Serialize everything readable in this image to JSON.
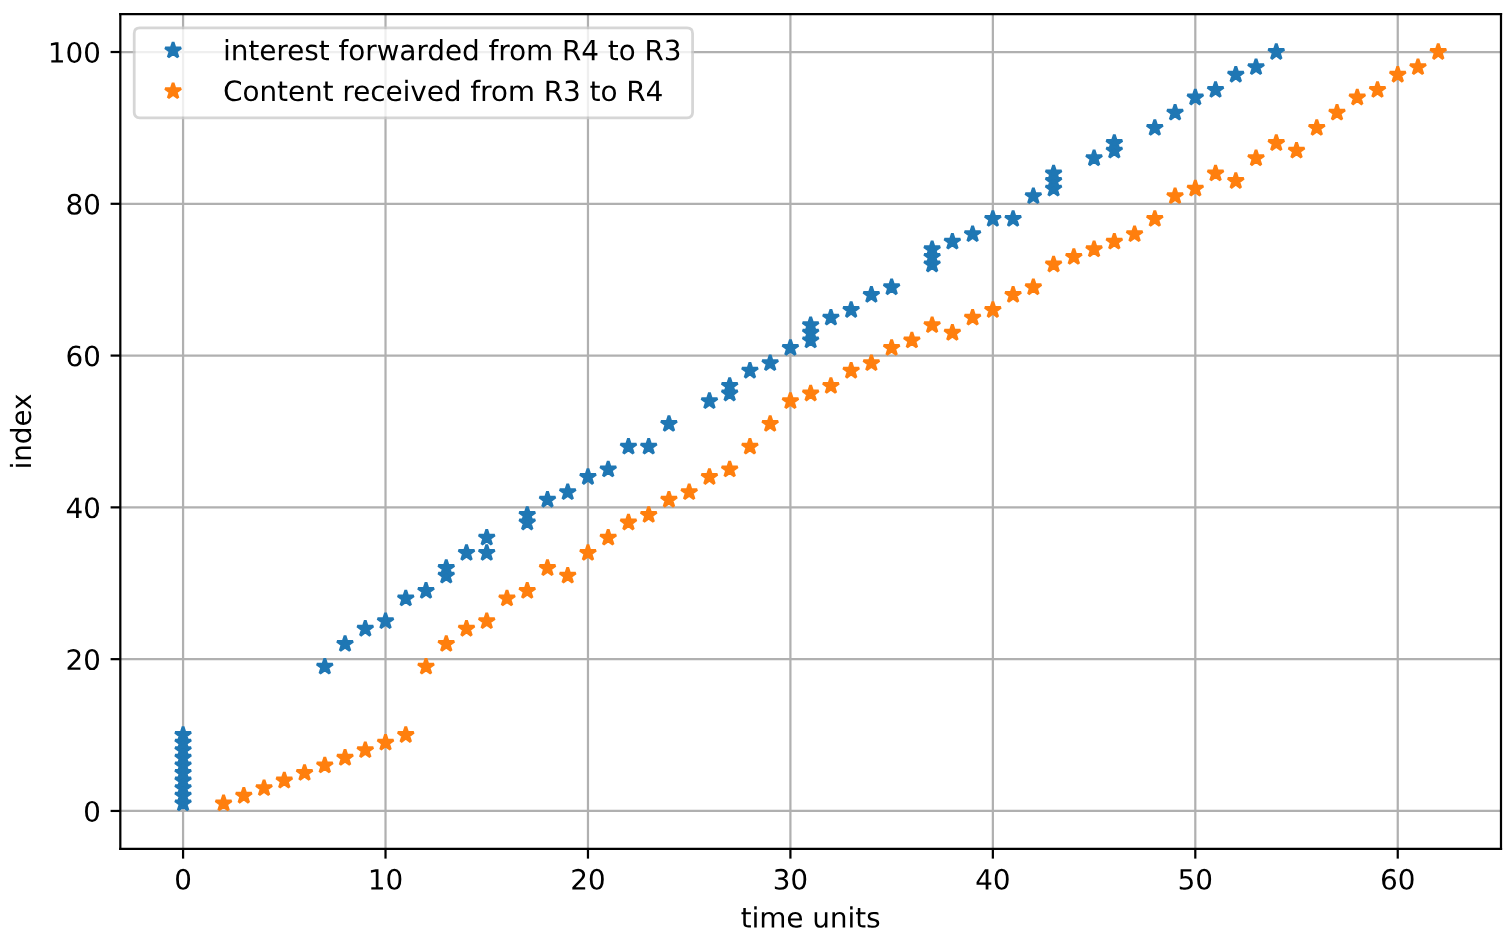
{
  "chart_data": {
    "type": "scatter",
    "xlabel": "time units",
    "ylabel": "index",
    "xlim": [
      -3.1,
      65.1
    ],
    "ylim": [
      -5,
      105
    ],
    "xticks": [
      0,
      10,
      20,
      30,
      40,
      50,
      60
    ],
    "yticks": [
      0,
      20,
      40,
      60,
      80,
      100
    ],
    "grid": true,
    "legend": "top left",
    "marker": "star",
    "series": [
      {
        "name": "interest forwarded from R4 to R3",
        "color": "#1f77b4",
        "x": [
          0,
          0,
          0,
          0,
          0,
          0,
          0,
          0,
          0,
          0,
          7,
          8,
          9,
          10,
          11,
          12,
          13,
          13,
          14,
          15,
          15,
          17,
          17,
          18,
          19,
          20,
          21,
          22,
          23,
          24,
          26,
          27,
          27,
          28,
          29,
          30,
          31,
          31,
          31,
          32,
          33,
          34,
          35,
          37,
          37,
          37,
          38,
          39,
          40,
          41,
          42,
          43,
          43,
          43,
          45,
          46,
          46,
          48,
          49,
          50,
          51,
          52,
          53,
          54
        ],
        "values": [
          1,
          2,
          3,
          4,
          5,
          6,
          7,
          8,
          9,
          10,
          19,
          22,
          24,
          25,
          28,
          29,
          31,
          32,
          34,
          34,
          36,
          38,
          39,
          41,
          42,
          44,
          45,
          48,
          48,
          51,
          54,
          55,
          56,
          58,
          59,
          61,
          62,
          63,
          64,
          65,
          66,
          68,
          69,
          72,
          73,
          74,
          75,
          76,
          78,
          78,
          81,
          82,
          83,
          84,
          86,
          87,
          88,
          90,
          92,
          94,
          95,
          97,
          98,
          100
        ]
      },
      {
        "name": "Content received from R3 to R4",
        "color": "#ff7f0e",
        "x": [
          2,
          3,
          4,
          5,
          6,
          7,
          8,
          9,
          10,
          11,
          12,
          13,
          14,
          15,
          16,
          17,
          18,
          19,
          20,
          21,
          22,
          23,
          24,
          25,
          26,
          27,
          28,
          29,
          30,
          31,
          32,
          33,
          34,
          35,
          36,
          37,
          38,
          39,
          40,
          41,
          42,
          43,
          44,
          45,
          46,
          47,
          48,
          49,
          50,
          51,
          52,
          53,
          54,
          55,
          56,
          57,
          58,
          59,
          60,
          61,
          62
        ],
        "values": [
          1,
          2,
          3,
          4,
          5,
          6,
          7,
          8,
          9,
          10,
          19,
          22,
          24,
          25,
          28,
          29,
          32,
          31,
          34,
          36,
          38,
          39,
          41,
          42,
          44,
          45,
          48,
          51,
          54,
          55,
          56,
          58,
          59,
          61,
          62,
          64,
          63,
          65,
          66,
          68,
          69,
          72,
          73,
          74,
          75,
          76,
          78,
          81,
          82,
          84,
          83,
          86,
          88,
          87,
          90,
          92,
          94,
          95,
          97,
          98,
          100
        ]
      }
    ]
  }
}
